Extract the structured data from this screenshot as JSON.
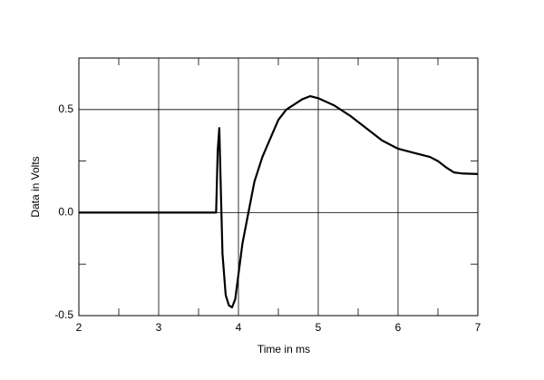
{
  "chart_data": {
    "type": "line",
    "x_label": "Time in ms",
    "y_label": "Data in Volts",
    "x": [
      2.0,
      3.0,
      3.7,
      3.72,
      3.74,
      3.76,
      3.78,
      3.8,
      3.84,
      3.88,
      3.92,
      3.96,
      4.0,
      4.05,
      4.1,
      4.2,
      4.3,
      4.4,
      4.5,
      4.6,
      4.8,
      4.9,
      5.0,
      5.2,
      5.4,
      5.6,
      5.8,
      6.0,
      6.2,
      6.4,
      6.5,
      6.6,
      6.7,
      6.8,
      7.0
    ],
    "series": [
      {
        "color": "#000000",
        "values": [
          0,
          0,
          0,
          0.0,
          0.3,
          0.41,
          0.1,
          -0.2,
          -0.4,
          -0.45,
          -0.46,
          -0.42,
          -0.3,
          -0.15,
          -0.05,
          0.15,
          0.27,
          0.36,
          0.45,
          0.5,
          0.55,
          0.565,
          0.555,
          0.52,
          0.47,
          0.41,
          0.35,
          0.31,
          0.29,
          0.27,
          0.25,
          0.22,
          0.195,
          0.19,
          0.187
        ]
      }
    ],
    "xlim": [
      2,
      7
    ],
    "ylim": [
      -0.5,
      0.75
    ],
    "xticks": [
      2,
      3,
      4,
      5,
      6,
      7
    ],
    "yticks": [
      -0.5,
      {
        "value": 0,
        "label": "0.0"
      },
      0.5
    ],
    "xminorticks": [
      2.5,
      3.5,
      4.5,
      5.5,
      6.5
    ],
    "yminorticks": [
      -0.25,
      0.25
    ],
    "grid": true
  }
}
